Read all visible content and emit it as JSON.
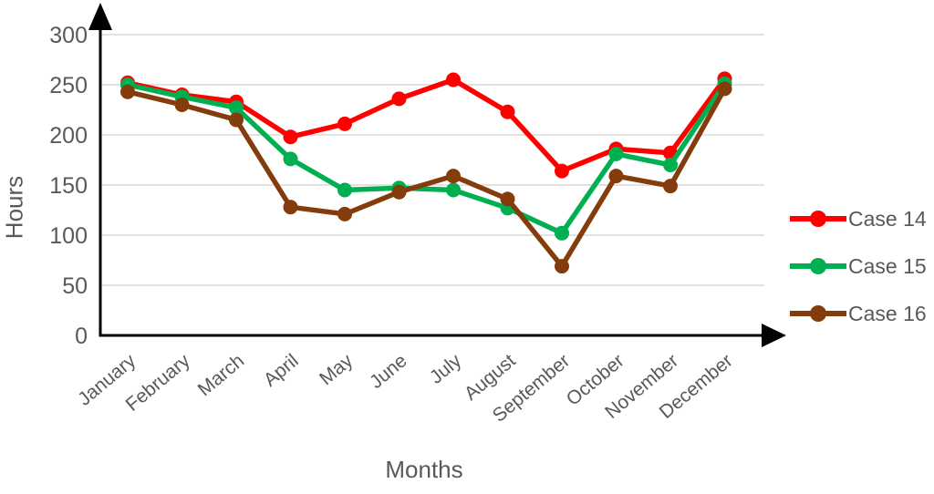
{
  "chart_data": {
    "type": "line",
    "title": "",
    "xlabel": "Months",
    "ylabel": "Hours",
    "ylim": [
      0,
      300
    ],
    "ytick_step": 50,
    "grid": true,
    "legend_position": "right",
    "categories": [
      "January",
      "February",
      "March",
      "April",
      "May",
      "June",
      "July",
      "August",
      "September",
      "October",
      "November",
      "December"
    ],
    "series": [
      {
        "name": "Case 14",
        "color": "#ff0000",
        "values": [
          252,
          240,
          233,
          198,
          211,
          236,
          255,
          223,
          164,
          186,
          182,
          256
        ]
      },
      {
        "name": "Case 15",
        "color": "#00b050",
        "values": [
          250,
          238,
          227,
          176,
          145,
          147,
          145,
          127,
          102,
          181,
          170,
          251
        ]
      },
      {
        "name": "Case 16",
        "color": "#843c0c",
        "values": [
          243,
          230,
          215,
          128,
          121,
          143,
          159,
          136,
          69,
          159,
          149,
          246
        ]
      }
    ]
  },
  "colors": {
    "text": "#595959",
    "gridline": "#d9d9d9",
    "axis": "#000000"
  }
}
